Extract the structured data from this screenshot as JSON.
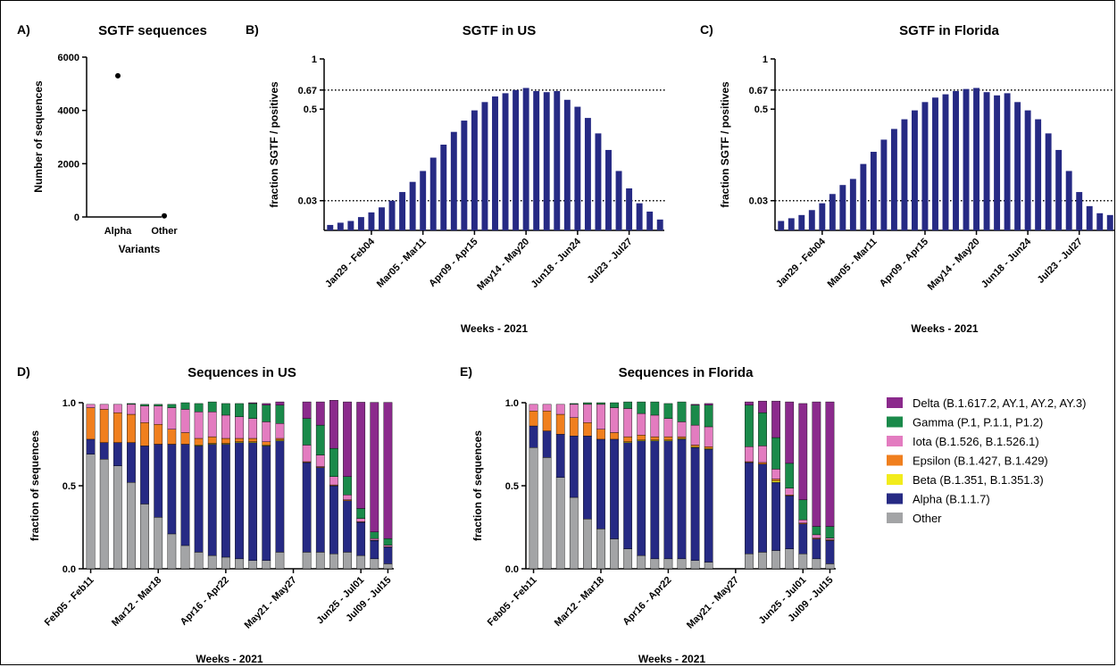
{
  "panels": {
    "A": {
      "label": "A)"
    },
    "B": {
      "label": "B)"
    },
    "C": {
      "label": "C)"
    },
    "D": {
      "label": "D)"
    },
    "E": {
      "label": "E)"
    }
  },
  "legend": {
    "items": [
      {
        "name": "Delta (B.1.617.2, AY.1, AY.2, AY.3)",
        "color": "#8b2a8c"
      },
      {
        "name": "Gamma (P.1, P.1.1, P1.2)",
        "color": "#1a8a4a"
      },
      {
        "name": "Iota (B.1.526, B.1.526.1)",
        "color": "#e37cc0"
      },
      {
        "name": "Epsilon (B.1.427, B.1.429)",
        "color": "#f07f1e"
      },
      {
        "name": "Beta (B.1.351, B.1.351.3)",
        "color": "#f2ec1c"
      },
      {
        "name": "Alpha (B.1.1.7)",
        "color": "#262a84"
      },
      {
        "name": "Other",
        "color": "#a3a4a6"
      }
    ]
  },
  "chart_data": [
    {
      "id": "A",
      "type": "scatter",
      "title": "SGTF sequences",
      "xlabel": "Variants",
      "ylabel": "Number of sequences",
      "categories": [
        "Alpha",
        "Other"
      ],
      "values": [
        5300,
        40
      ],
      "ylim": [
        0,
        6000
      ],
      "yticks": [
        0,
        2000,
        4000,
        6000
      ],
      "ytick_labels": [
        "0",
        "2000",
        "4000",
        "6000"
      ]
    },
    {
      "id": "B",
      "type": "bar",
      "title": "SGTF in US",
      "xlabel": "Weeks - 2021",
      "ylabel": "fraction SGTF / positives",
      "yscale": "sqrt",
      "ylim": [
        0,
        1
      ],
      "yticks": [
        0.03,
        0.5,
        0.67,
        1
      ],
      "ytick_labels": [
        "0.03",
        "0.5",
        "0.67",
        "1"
      ],
      "reference_lines": [
        0.67,
        0.03
      ],
      "color": "#262a84",
      "x_tick_labels": [
        "Jan29 - Feb04",
        "Mar05 - Mar11",
        "Apr09 - Apr15",
        "May14 - May20",
        "Jun18 - Jun24",
        "Jul23 - Jul27"
      ],
      "x_tick_positions": [
        4,
        9,
        14,
        19,
        24,
        29
      ],
      "values": [
        0.001,
        0.002,
        0.003,
        0.006,
        0.011,
        0.018,
        0.03,
        0.05,
        0.08,
        0.12,
        0.18,
        0.25,
        0.33,
        0.41,
        0.49,
        0.56,
        0.61,
        0.64,
        0.67,
        0.69,
        0.66,
        0.65,
        0.66,
        0.58,
        0.52,
        0.43,
        0.32,
        0.22,
        0.12,
        0.06,
        0.025,
        0.012,
        0.004
      ]
    },
    {
      "id": "C",
      "type": "bar",
      "title": "SGTF in Florida",
      "xlabel": "Weeks - 2021",
      "ylabel": "fraction SGTF / positives",
      "yscale": "sqrt",
      "ylim": [
        0,
        1
      ],
      "yticks": [
        0.03,
        0.5,
        0.67,
        1
      ],
      "ytick_labels": [
        "0.03",
        "0.5",
        "0.67",
        "1"
      ],
      "reference_lines": [
        0.67,
        0.03
      ],
      "color": "#262a84",
      "x_tick_labels": [
        "Jan29 - Feb04",
        "Mar05 - Mar11",
        "Apr09 - Apr15",
        "May14 - May20",
        "Jun18 - Jun24",
        "Jul23 - Jul27"
      ],
      "x_tick_positions": [
        4,
        9,
        14,
        19,
        24,
        29
      ],
      "values": [
        0.003,
        0.005,
        0.008,
        0.014,
        0.025,
        0.045,
        0.07,
        0.09,
        0.15,
        0.21,
        0.28,
        0.35,
        0.42,
        0.49,
        0.56,
        0.6,
        0.63,
        0.66,
        0.68,
        0.69,
        0.65,
        0.62,
        0.64,
        0.56,
        0.49,
        0.42,
        0.32,
        0.22,
        0.12,
        0.05,
        0.02,
        0.01,
        0.008
      ]
    },
    {
      "id": "D",
      "type": "bar",
      "stacked": true,
      "title": "Sequences in US",
      "xlabel": "Weeks - 2021",
      "ylabel": "fraction of sequences",
      "ylim": [
        0,
        1
      ],
      "yticks": [
        0,
        0.5,
        1
      ],
      "ytick_labels": [
        "0.0",
        "0.5",
        "1.0"
      ],
      "x_tick_labels": [
        "Feb05 - Feb11",
        "Mar12 - Mar18",
        "Apr16 - Apr22",
        "May21 - May27",
        "Jun25 - Jul01",
        "Jul09 - Jul15"
      ],
      "x_tick_positions": [
        0,
        5,
        10,
        15,
        20,
        22
      ],
      "series_order": [
        "Other",
        "Alpha",
        "Beta",
        "Epsilon",
        "Iota",
        "Gamma",
        "Delta"
      ],
      "bars": [
        [
          0.69,
          0.09,
          0,
          0.19,
          0.02,
          0,
          0
        ],
        [
          0.66,
          0.1,
          0,
          0.2,
          0.03,
          0,
          0
        ],
        [
          0.62,
          0.14,
          0,
          0.18,
          0.05,
          0,
          0
        ],
        [
          0.52,
          0.24,
          0,
          0.17,
          0.06,
          0.005,
          0
        ],
        [
          0.39,
          0.35,
          0,
          0.14,
          0.1,
          0.01,
          0
        ],
        [
          0.31,
          0.44,
          0,
          0.12,
          0.11,
          0.01,
          0
        ],
        [
          0.21,
          0.54,
          0,
          0.09,
          0.13,
          0.02,
          0
        ],
        [
          0.14,
          0.61,
          0,
          0.07,
          0.14,
          0.04,
          0
        ],
        [
          0.1,
          0.64,
          0.005,
          0.04,
          0.16,
          0.05,
          0
        ],
        [
          0.08,
          0.67,
          0.005,
          0.04,
          0.15,
          0.06,
          0
        ],
        [
          0.07,
          0.68,
          0.005,
          0.03,
          0.14,
          0.07,
          0
        ],
        [
          0.06,
          0.7,
          0.005,
          0.02,
          0.13,
          0.08,
          0
        ],
        [
          0.05,
          0.71,
          0.005,
          0.02,
          0.12,
          0.09,
          0.005
        ],
        [
          0.05,
          0.69,
          0.005,
          0.02,
          0.12,
          0.1,
          0.01
        ],
        [
          0.1,
          0.67,
          0.005,
          0.01,
          0.09,
          0.11,
          0.02
        ],
        null,
        [
          0.1,
          0.54,
          0,
          0.005,
          0.1,
          0.16,
          0.1
        ],
        [
          0.1,
          0.51,
          0,
          0.005,
          0.07,
          0.18,
          0.14
        ],
        [
          0.09,
          0.41,
          0,
          0.005,
          0.05,
          0.17,
          0.29
        ],
        [
          0.1,
          0.31,
          0,
          0.005,
          0.03,
          0.11,
          0.45
        ],
        [
          0.08,
          0.2,
          0,
          0.003,
          0.02,
          0.06,
          0.64
        ],
        [
          0.06,
          0.11,
          0,
          0.002,
          0.01,
          0.04,
          0.78
        ],
        [
          0.03,
          0.1,
          0,
          0.002,
          0.01,
          0.04,
          0.82
        ]
      ]
    },
    {
      "id": "E",
      "type": "bar",
      "stacked": true,
      "title": "Sequences in Florida",
      "xlabel": "Weeks - 2021",
      "ylabel": "fraction of sequences",
      "ylim": [
        0,
        1
      ],
      "yticks": [
        0,
        0.5,
        1
      ],
      "ytick_labels": [
        "0.0",
        "0.5",
        "1.0"
      ],
      "x_tick_labels": [
        "Feb05 - Feb11",
        "Mar12 - Mar18",
        "Apr16 - Apr22",
        "May21 - May27",
        "Jun25 - Jul01",
        "Jul09 - Jul15"
      ],
      "x_tick_positions": [
        0,
        5,
        10,
        15,
        20,
        22
      ],
      "series_order": [
        "Other",
        "Alpha",
        "Beta",
        "Epsilon",
        "Iota",
        "Gamma",
        "Delta"
      ],
      "bars": [
        [
          0.73,
          0.13,
          0,
          0.09,
          0.04,
          0,
          0
        ],
        [
          0.67,
          0.16,
          0,
          0.12,
          0.04,
          0,
          0
        ],
        [
          0.55,
          0.26,
          0,
          0.12,
          0.06,
          0,
          0
        ],
        [
          0.43,
          0.37,
          0,
          0.11,
          0.08,
          0.005,
          0
        ],
        [
          0.3,
          0.5,
          0,
          0.08,
          0.11,
          0.01,
          0
        ],
        [
          0.24,
          0.54,
          0,
          0.06,
          0.15,
          0.01,
          0
        ],
        [
          0.18,
          0.6,
          0,
          0.04,
          0.15,
          0.03,
          0
        ],
        [
          0.12,
          0.64,
          0.005,
          0.03,
          0.17,
          0.04,
          0
        ],
        [
          0.08,
          0.69,
          0.005,
          0.03,
          0.13,
          0.07,
          0
        ],
        [
          0.06,
          0.71,
          0.005,
          0.02,
          0.13,
          0.08,
          0
        ],
        [
          0.06,
          0.71,
          0.005,
          0.02,
          0.11,
          0.09,
          0
        ],
        [
          0.06,
          0.72,
          0.005,
          0.01,
          0.09,
          0.12,
          0
        ],
        [
          0.05,
          0.68,
          0.005,
          0.01,
          0.12,
          0.12,
          0.005
        ],
        [
          0.04,
          0.68,
          0.005,
          0.01,
          0.12,
          0.13,
          0.01
        ],
        null,
        null,
        [
          0.09,
          0.55,
          0,
          0.005,
          0.09,
          0.25,
          0.02
        ],
        [
          0.1,
          0.53,
          0,
          0.01,
          0.1,
          0.2,
          0.07
        ],
        [
          0.11,
          0.41,
          0.01,
          0.01,
          0.06,
          0.19,
          0.22
        ],
        [
          0.12,
          0.32,
          0,
          0.005,
          0.04,
          0.15,
          0.37
        ],
        [
          0.09,
          0.18,
          0,
          0.005,
          0.02,
          0.12,
          0.58
        ],
        [
          0.06,
          0.12,
          0,
          0.005,
          0.02,
          0.05,
          0.75
        ],
        [
          0.03,
          0.14,
          0,
          0.005,
          0.01,
          0.07,
          0.75
        ]
      ]
    }
  ]
}
